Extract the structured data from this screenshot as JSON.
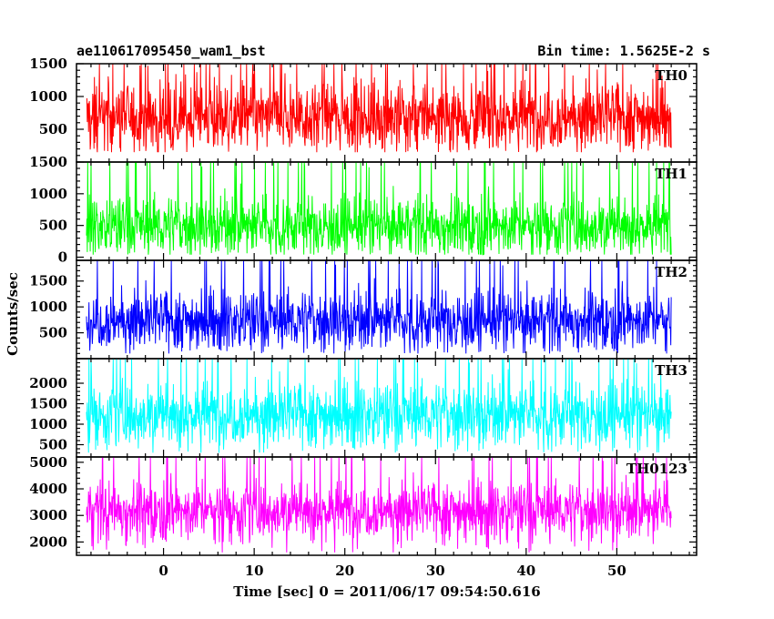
{
  "header": {
    "title": "ae110617095450_wam1_bst",
    "bin_time": "Bin time: 1.5625E-2 s"
  },
  "chart_data": {
    "type": "line",
    "xlabel": "Time [sec] 0 = 2011/06/17 09:54:50.616",
    "ylabel": "Counts/sec",
    "x_range": [
      -8.5,
      56
    ],
    "xlim": [
      -9.6,
      58.8
    ],
    "x_ticks": [
      0,
      10,
      20,
      30,
      40,
      50
    ],
    "panels": [
      {
        "name": "TH0",
        "color": "#ff0000",
        "ylim": [
          0,
          1500
        ],
        "y_ticks": [
          500,
          1000,
          1500
        ],
        "mean": 700,
        "spread": 260,
        "min": 150,
        "max": 1500
      },
      {
        "name": "TH1",
        "color": "#00ff00",
        "ylim": [
          -50,
          1500
        ],
        "y_ticks": [
          0,
          500,
          1000,
          1500
        ],
        "mean": 500,
        "spread": 230,
        "min": 40,
        "max": 1500
      },
      {
        "name": "TH2",
        "color": "#0000ff",
        "ylim": [
          0,
          1900
        ],
        "y_ticks": [
          500,
          1000,
          1500
        ],
        "mean": 750,
        "spread": 280,
        "min": 100,
        "max": 1900
      },
      {
        "name": "TH3",
        "color": "#00ffff",
        "ylim": [
          200,
          2600
        ],
        "y_ticks": [
          500,
          1000,
          1500,
          2000
        ],
        "mean": 1250,
        "spread": 380,
        "min": 300,
        "max": 2600
      },
      {
        "name": "TH0123",
        "color": "#ff00ff",
        "ylim": [
          1500,
          5200
        ],
        "y_ticks": [
          2000,
          3000,
          4000,
          5000
        ],
        "mean": 3200,
        "spread": 520,
        "min": 1600,
        "max": 5200
      }
    ]
  }
}
